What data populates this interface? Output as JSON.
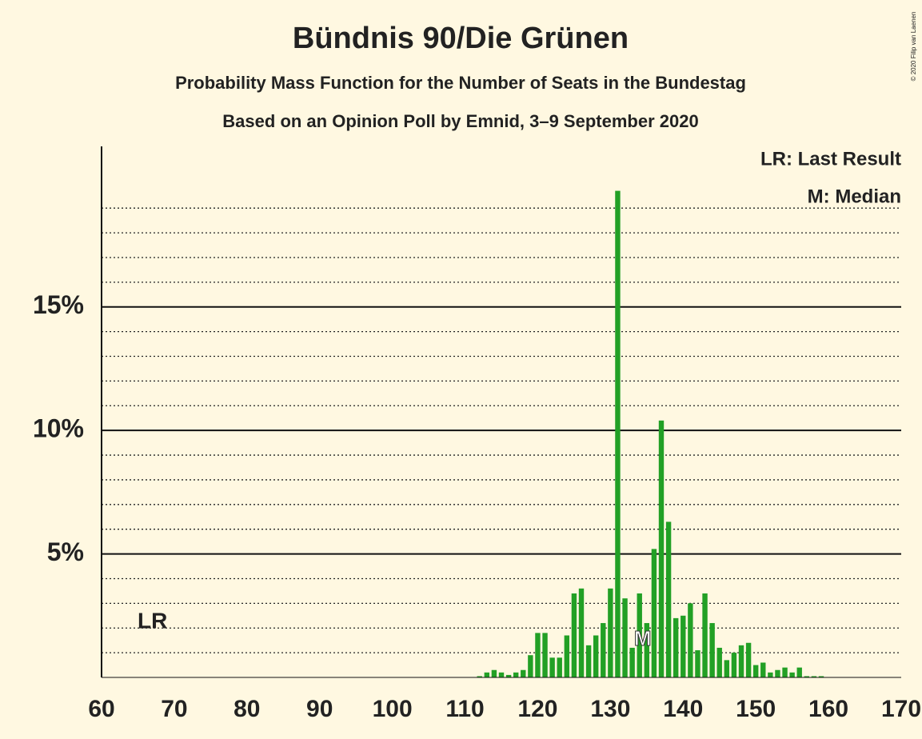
{
  "chart_data": {
    "type": "bar",
    "title": "Bündnis 90/Die Grünen",
    "subtitle": "Probability Mass Function for the Number of Seats in the Bundestag",
    "source_note": "Based on an Opinion Poll by Emnid, 3–9 September 2020",
    "copyright": "© 2020 Filip van Laenen",
    "legend": [
      "LR: Last Result",
      "M: Median"
    ],
    "annotations": [
      {
        "text": "LR",
        "x": 67
      },
      {
        "text": "M",
        "x": 134
      }
    ],
    "color": "#22a025",
    "x": [
      60,
      61,
      62,
      63,
      64,
      65,
      66,
      67,
      68,
      69,
      70,
      71,
      72,
      73,
      74,
      75,
      76,
      77,
      78,
      79,
      80,
      81,
      82,
      83,
      84,
      85,
      86,
      87,
      88,
      89,
      90,
      91,
      92,
      93,
      94,
      95,
      96,
      97,
      98,
      99,
      100,
      101,
      102,
      103,
      104,
      105,
      106,
      107,
      108,
      109,
      110,
      111,
      112,
      113,
      114,
      115,
      116,
      117,
      118,
      119,
      120,
      121,
      122,
      123,
      124,
      125,
      126,
      127,
      128,
      129,
      130,
      131,
      132,
      133,
      134,
      135,
      136,
      137,
      138,
      139,
      140,
      141,
      142,
      143,
      144,
      145,
      146,
      147,
      148,
      149,
      150,
      151,
      152,
      153,
      154,
      155,
      156,
      157,
      158,
      159,
      160,
      161,
      162,
      163,
      164,
      165,
      166,
      167,
      168,
      169,
      170
    ],
    "values": [
      0,
      0,
      0,
      0,
      0,
      0,
      0,
      0,
      0,
      0,
      0,
      0,
      0,
      0,
      0,
      0,
      0,
      0,
      0,
      0,
      0,
      0,
      0,
      0,
      0,
      0,
      0,
      0,
      0,
      0,
      0,
      0,
      0,
      0,
      0,
      0,
      0,
      0,
      0,
      0,
      0,
      0,
      0,
      0,
      0,
      0,
      0,
      0,
      0,
      0,
      0,
      0,
      0.05,
      0.2,
      0.3,
      0.2,
      0.1,
      0.2,
      0.3,
      0.9,
      1.8,
      1.8,
      0.8,
      0.8,
      1.7,
      3.4,
      3.6,
      1.3,
      1.7,
      2.2,
      3.6,
      19.7,
      3.2,
      1.2,
      3.4,
      2.2,
      5.2,
      10.4,
      6.3,
      2.4,
      2.5,
      3.0,
      1.1,
      3.4,
      2.2,
      1.2,
      0.7,
      1.0,
      1.3,
      1.4,
      0.5,
      0.6,
      0.2,
      0.3,
      0.4,
      0.2,
      0.4,
      0.05,
      0.05,
      0.05,
      0,
      0,
      0,
      0,
      0,
      0,
      0,
      0,
      0,
      0,
      0
    ],
    "xlim": [
      60,
      170
    ],
    "xticks": [
      60,
      70,
      80,
      90,
      100,
      110,
      120,
      130,
      140,
      150,
      160,
      170
    ],
    "ylim": [
      0,
      21.5
    ],
    "yticks": [
      {
        "value": 5,
        "label": "5%"
      },
      {
        "value": 10,
        "label": "10%"
      },
      {
        "value": 15,
        "label": "15%"
      }
    ],
    "minor_gridlines": [
      1,
      2,
      3,
      4,
      6,
      7,
      8,
      9,
      11,
      12,
      13,
      14,
      16,
      17,
      18,
      19
    ],
    "grid": true
  }
}
